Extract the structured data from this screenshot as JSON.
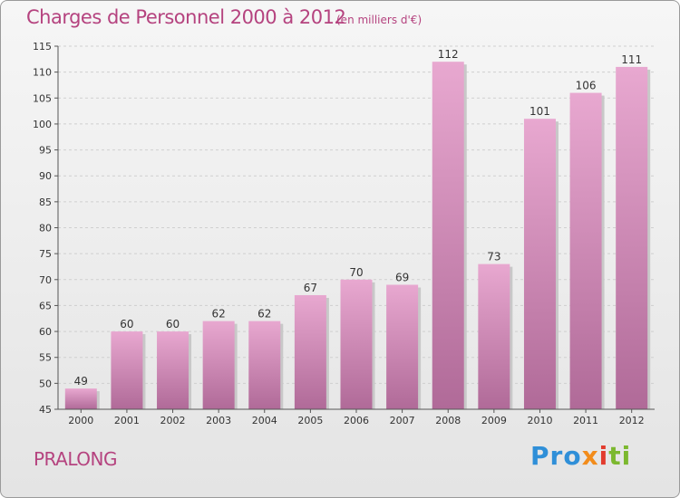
{
  "header": {
    "title": "Charges de Personnel 2000 à 2012",
    "subtitle": "(en milliers d'€)"
  },
  "footer": {
    "commune": "PRALONG",
    "logo": [
      "Pro",
      "x",
      "i",
      "ti"
    ]
  },
  "colors": {
    "title": "#b5437f",
    "bar_light": "#e8a8d0",
    "bar_dark": "#b06a98"
  },
  "chart_data": {
    "type": "bar",
    "categories": [
      "2000",
      "2001",
      "2002",
      "2003",
      "2004",
      "2005",
      "2006",
      "2007",
      "2008",
      "2009",
      "2010",
      "2011",
      "2012"
    ],
    "values": [
      49,
      60,
      60,
      62,
      62,
      67,
      70,
      69,
      112,
      73,
      101,
      106,
      111
    ],
    "title": "Charges de Personnel 2000 à 2012",
    "subtitle": "(en milliers d'€)",
    "ylim": [
      45,
      115
    ],
    "yticks": [
      45,
      50,
      55,
      60,
      65,
      70,
      75,
      80,
      85,
      90,
      95,
      100,
      105,
      110,
      115
    ],
    "grid": true
  }
}
